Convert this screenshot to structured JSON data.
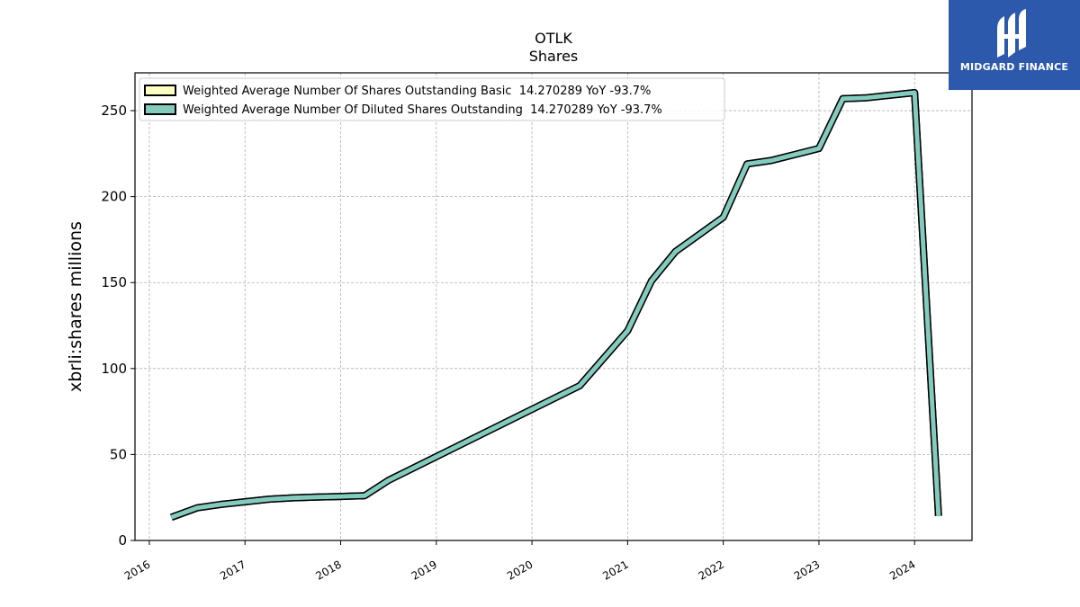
{
  "brand": {
    "name": "MIDGARD FINANCE",
    "color": "#2d59ad"
  },
  "chart_data": {
    "type": "line",
    "title": "OTLK",
    "subtitle": "Shares",
    "xlabel": "",
    "ylabel": "xbrli:shares millions",
    "xlim": [
      2015.85,
      2024.6
    ],
    "ylim": [
      0,
      272
    ],
    "x_ticks": [
      "2016",
      "2017",
      "2018",
      "2019",
      "2020",
      "2021",
      "2022",
      "2023",
      "2024"
    ],
    "y_ticks": [
      "0",
      "50",
      "100",
      "150",
      "200",
      "250"
    ],
    "grid": true,
    "legend_position": "top-left",
    "series": [
      {
        "name": "Weighted Average Number Of Shares Outstanding Basic  14.270289 YoY -93.7%",
        "color": "#ffffc0",
        "x": [
          2016.23,
          2016.5,
          2016.75,
          2017.0,
          2017.25,
          2017.5,
          2017.75,
          2018.0,
          2018.25,
          2018.5,
          2020.5,
          2021.0,
          2021.25,
          2021.5,
          2022.0,
          2022.25,
          2022.5,
          2023.0,
          2023.25,
          2023.5,
          2024.0,
          2024.25
        ],
        "y": [
          13.5,
          19,
          21,
          22.5,
          24,
          24.8,
          25.2,
          25.6,
          26,
          35,
          90,
          122,
          151,
          168,
          188,
          219,
          221,
          228,
          257,
          257.5,
          260.5,
          14.27
        ]
      },
      {
        "name": "Weighted Average Number Of Diluted Shares Outstanding  14.270289 YoY -93.7%",
        "color": "#82cbbd",
        "x": [
          2016.23,
          2016.5,
          2016.75,
          2017.0,
          2017.25,
          2017.5,
          2017.75,
          2018.0,
          2018.25,
          2018.5,
          2020.5,
          2021.0,
          2021.25,
          2021.5,
          2022.0,
          2022.25,
          2022.5,
          2023.0,
          2023.25,
          2023.5,
          2024.0,
          2024.25
        ],
        "y": [
          13.5,
          19,
          21,
          22.5,
          24,
          24.8,
          25.2,
          25.6,
          26,
          35,
          90,
          122,
          151,
          168,
          188,
          219,
          221,
          228,
          257,
          257.5,
          260.5,
          14.27
        ]
      }
    ]
  }
}
